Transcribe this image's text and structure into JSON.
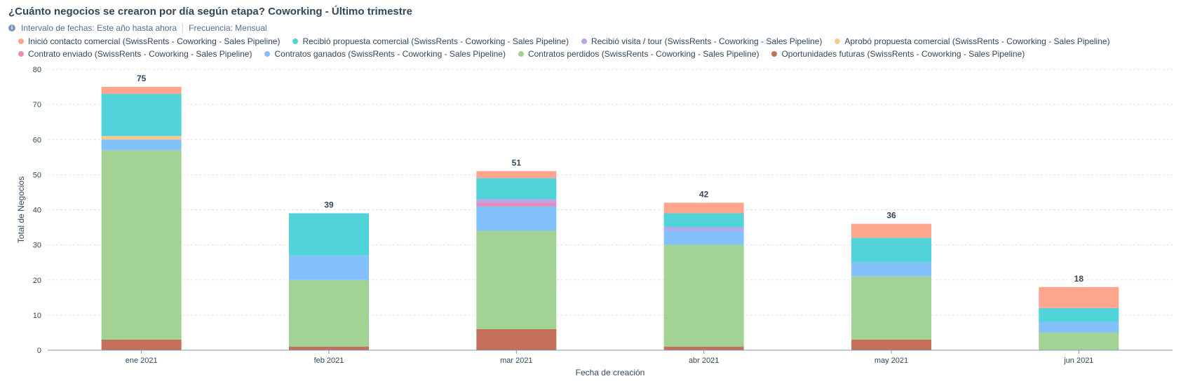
{
  "header": {
    "title": "¿Cuánto negocios se crearon por día según etapa? Coworking - Último trimestre",
    "date_range": "Intervalo de fechas: Este año hasta ahora",
    "frequency": "Frecuencia: Mensual"
  },
  "chart_data": {
    "type": "bar",
    "stacked": true,
    "xlabel": "Fecha de creación",
    "ylabel": "Total de Negocios",
    "ylim": [
      0,
      80
    ],
    "yticks": [
      0,
      10,
      20,
      30,
      40,
      50,
      60,
      70,
      80
    ],
    "grid": true,
    "legend_position": "top",
    "categories": [
      "ene 2021",
      "feb 2021",
      "mar 2021",
      "abr 2021",
      "may 2021",
      "jun 2021"
    ],
    "totals": [
      75,
      39,
      51,
      42,
      36,
      18
    ],
    "series": [
      {
        "name": "Oportunidades futuras (SwissRents - Coworking - Sales Pipeline)",
        "color": "#c4705b",
        "values": [
          3,
          1,
          6,
          1,
          3,
          0
        ]
      },
      {
        "name": "Contratos perdidos (SwissRents - Coworking - Sales Pipeline)",
        "color": "#a2d395",
        "values": [
          54,
          19,
          28,
          29,
          18,
          5
        ]
      },
      {
        "name": "Contratos ganados (SwissRents - Coworking - Sales Pipeline)",
        "color": "#82c1fb",
        "values": [
          3,
          7,
          7,
          4,
          4,
          3
        ]
      },
      {
        "name": "Contrato enviado (SwissRents - Coworking - Sales Pipeline)",
        "color": "#e98ab7",
        "values": [
          0,
          0,
          1,
          0,
          0,
          0
        ]
      },
      {
        "name": "Aprobó propuesta comercial (SwissRents - Coworking - Sales Pipeline)",
        "color": "#f7c98c",
        "values": [
          1,
          0,
          0,
          0,
          0,
          0
        ]
      },
      {
        "name": "Recibió visita / tour (SwissRents - Coworking - Sales Pipeline)",
        "color": "#bca4e8",
        "values": [
          0,
          0,
          1,
          1,
          0,
          0
        ]
      },
      {
        "name": "Recibió propuesta comercial (SwissRents - Coworking - Sales Pipeline)",
        "color": "#51d3d9",
        "values": [
          12,
          12,
          6,
          4,
          7,
          4
        ]
      },
      {
        "name": "Inició contacto comercial (SwissRents - Coworking - Sales Pipeline)",
        "color": "#fea58e",
        "values": [
          2,
          0,
          2,
          3,
          4,
          6
        ]
      }
    ],
    "legend_order": [
      [
        "Inició contacto comercial (SwissRents - Coworking - Sales Pipeline)",
        "Recibió propuesta comercial (SwissRents - Coworking - Sales Pipeline)",
        "Recibió visita / tour (SwissRents - Coworking - Sales Pipeline)",
        "Aprobó propuesta comercial (SwissRents - Coworking - Sales Pipeline)"
      ],
      [
        "Contrato enviado (SwissRents - Coworking - Sales Pipeline)",
        "Contratos ganados (SwissRents - Coworking - Sales Pipeline)",
        "Contratos perdidos (SwissRents - Coworking - Sales Pipeline)",
        "Oportunidades futuras (SwissRents - Coworking - Sales Pipeline)"
      ]
    ]
  }
}
